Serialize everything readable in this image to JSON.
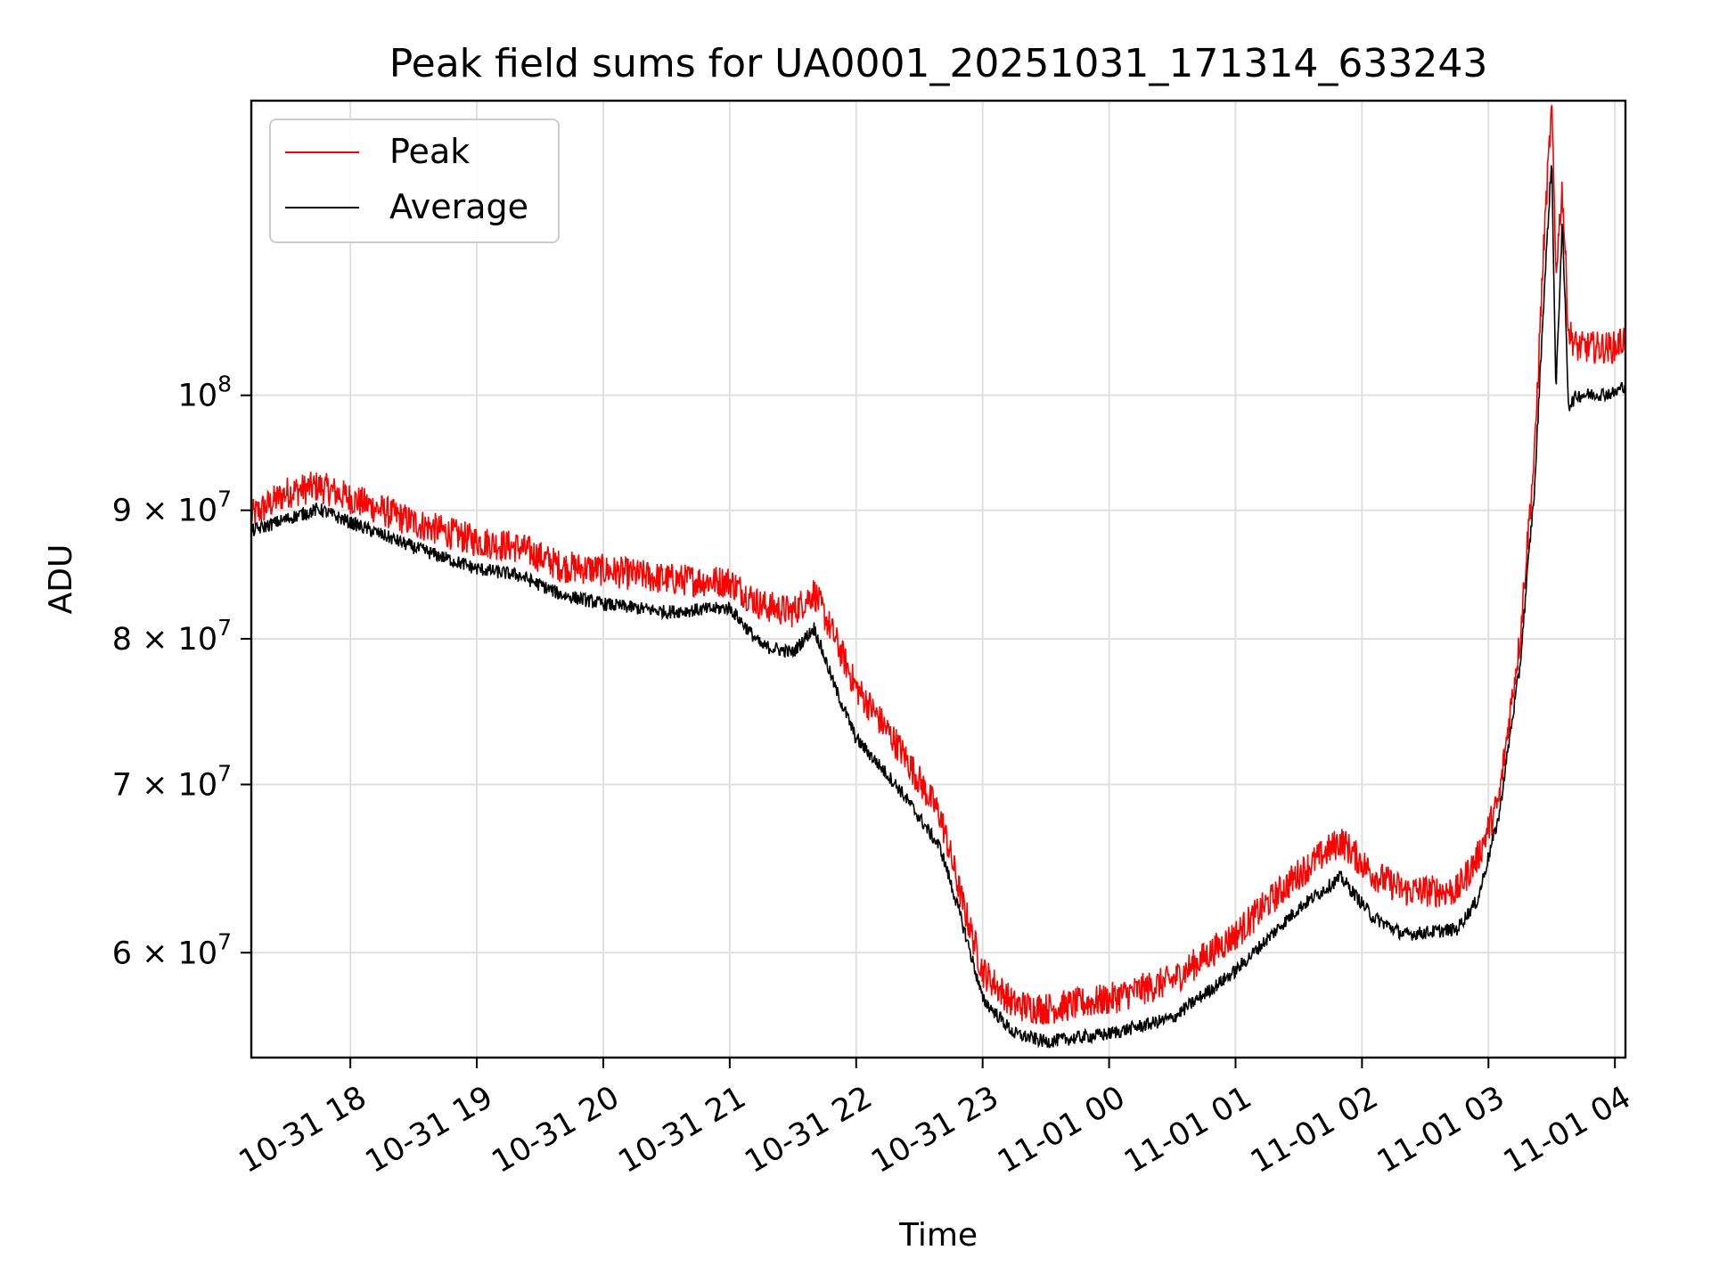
{
  "chart_data": {
    "type": "line",
    "title": "Peak field sums for UA0001_20251031_171314_633243",
    "xlabel": "Time",
    "ylabel": "ADU",
    "y_scale": "log",
    "grid": true,
    "legend_position": "top-left",
    "xlim": [
      "2025-10-31 17:13",
      "2025-11-01 04:05"
    ],
    "ylim": [
      54500000,
      131000000
    ],
    "x_ticks": [
      "10-31 18",
      "10-31 19",
      "10-31 20",
      "10-31 21",
      "10-31 22",
      "10-31 23",
      "11-01 00",
      "11-01 01",
      "11-01 02",
      "11-01 03",
      "11-01 04"
    ],
    "y_ticks": [
      {
        "value": 60000000,
        "mant": "6",
        "exp": "7"
      },
      {
        "value": 70000000,
        "mant": "7",
        "exp": "7"
      },
      {
        "value": 80000000,
        "mant": "8",
        "exp": "7"
      },
      {
        "value": 90000000,
        "mant": "9",
        "exp": "7"
      },
      {
        "value": 100000000,
        "mant": "",
        "exp": "8"
      }
    ],
    "series": [
      {
        "name": "Peak",
        "color": "#ff0000",
        "noise": 1200000,
        "points": [
          [
            "2025-10-31 17:13",
            89500000
          ],
          [
            "2025-10-31 17:30",
            91500000
          ],
          [
            "2025-10-31 17:45",
            92000000
          ],
          [
            "2025-10-31 18:00",
            91000000
          ],
          [
            "2025-10-31 18:30",
            89000000
          ],
          [
            "2025-10-31 19:00",
            87500000
          ],
          [
            "2025-10-31 19:20",
            87000000
          ],
          [
            "2025-10-31 19:40",
            85500000
          ],
          [
            "2025-10-31 20:00",
            85200000
          ],
          [
            "2025-10-31 20:30",
            84500000
          ],
          [
            "2025-10-31 21:00",
            84300000
          ],
          [
            "2025-10-31 21:15",
            82500000
          ],
          [
            "2025-10-31 21:30",
            82000000
          ],
          [
            "2025-10-31 21:40",
            83500000
          ],
          [
            "2025-10-31 21:50",
            80000000
          ],
          [
            "2025-10-31 22:00",
            76500000
          ],
          [
            "2025-10-31 22:20",
            72500000
          ],
          [
            "2025-10-31 22:40",
            68000000
          ],
          [
            "2025-10-31 22:50",
            63000000
          ],
          [
            "2025-10-31 23:00",
            59000000
          ],
          [
            "2025-10-31 23:15",
            57200000
          ],
          [
            "2025-10-31 23:30",
            57000000
          ],
          [
            "2025-11-01 00:00",
            57500000
          ],
          [
            "2025-11-01 00:30",
            58500000
          ],
          [
            "2025-11-01 01:00",
            61000000
          ],
          [
            "2025-11-01 01:30",
            64500000
          ],
          [
            "2025-11-01 01:50",
            66500000
          ],
          [
            "2025-11-01 02:05",
            64500000
          ],
          [
            "2025-11-01 02:20",
            63500000
          ],
          [
            "2025-11-01 02:45",
            63500000
          ],
          [
            "2025-11-01 02:55",
            65500000
          ],
          [
            "2025-11-01 03:05",
            69000000
          ],
          [
            "2025-11-01 03:15",
            80000000
          ],
          [
            "2025-11-01 03:22",
            95000000
          ],
          [
            "2025-11-01 03:27",
            118000000
          ],
          [
            "2025-11-01 03:30",
            130000000
          ],
          [
            "2025-11-01 03:32",
            112000000
          ],
          [
            "2025-11-01 03:35",
            121000000
          ],
          [
            "2025-11-01 03:38",
            106000000
          ],
          [
            "2025-11-01 03:42",
            104500000
          ],
          [
            "2025-11-01 04:00",
            104500000
          ],
          [
            "2025-11-01 04:05",
            105500000
          ]
        ]
      },
      {
        "name": "Average",
        "color": "#000000",
        "noise": 500000,
        "points": [
          [
            "2025-10-31 17:13",
            88300000
          ],
          [
            "2025-10-31 17:30",
            89300000
          ],
          [
            "2025-10-31 17:45",
            90100000
          ],
          [
            "2025-10-31 18:00",
            89000000
          ],
          [
            "2025-10-31 18:30",
            87000000
          ],
          [
            "2025-10-31 19:00",
            85300000
          ],
          [
            "2025-10-31 19:20",
            84800000
          ],
          [
            "2025-10-31 19:40",
            83300000
          ],
          [
            "2025-10-31 20:00",
            82600000
          ],
          [
            "2025-10-31 20:30",
            82000000
          ],
          [
            "2025-10-31 21:00",
            82300000
          ],
          [
            "2025-10-31 21:15",
            79500000
          ],
          [
            "2025-10-31 21:30",
            79000000
          ],
          [
            "2025-10-31 21:40",
            80800000
          ],
          [
            "2025-10-31 21:50",
            76500000
          ],
          [
            "2025-10-31 22:00",
            73000000
          ],
          [
            "2025-10-31 22:20",
            69800000
          ],
          [
            "2025-10-31 22:40",
            66000000
          ],
          [
            "2025-10-31 22:50",
            61800000
          ],
          [
            "2025-10-31 23:00",
            57500000
          ],
          [
            "2025-10-31 23:15",
            55700000
          ],
          [
            "2025-10-31 23:30",
            55300000
          ],
          [
            "2025-11-01 00:00",
            55700000
          ],
          [
            "2025-11-01 00:30",
            56500000
          ],
          [
            "2025-11-01 01:00",
            59000000
          ],
          [
            "2025-11-01 01:30",
            62500000
          ],
          [
            "2025-11-01 01:50",
            64300000
          ],
          [
            "2025-11-01 02:05",
            62000000
          ],
          [
            "2025-11-01 02:20",
            61000000
          ],
          [
            "2025-11-01 02:45",
            61300000
          ],
          [
            "2025-11-01 02:55",
            63000000
          ],
          [
            "2025-11-01 03:05",
            68000000
          ],
          [
            "2025-11-01 03:15",
            78000000
          ],
          [
            "2025-11-01 03:22",
            92000000
          ],
          [
            "2025-11-01 03:27",
            112000000
          ],
          [
            "2025-11-01 03:30",
            124000000
          ],
          [
            "2025-11-01 03:32",
            100000000
          ],
          [
            "2025-11-01 03:35",
            117000000
          ],
          [
            "2025-11-01 03:38",
            99000000
          ],
          [
            "2025-11-01 03:42",
            100000000
          ],
          [
            "2025-11-01 04:00",
            100200000
          ],
          [
            "2025-11-01 04:05",
            101000000
          ]
        ]
      }
    ]
  }
}
